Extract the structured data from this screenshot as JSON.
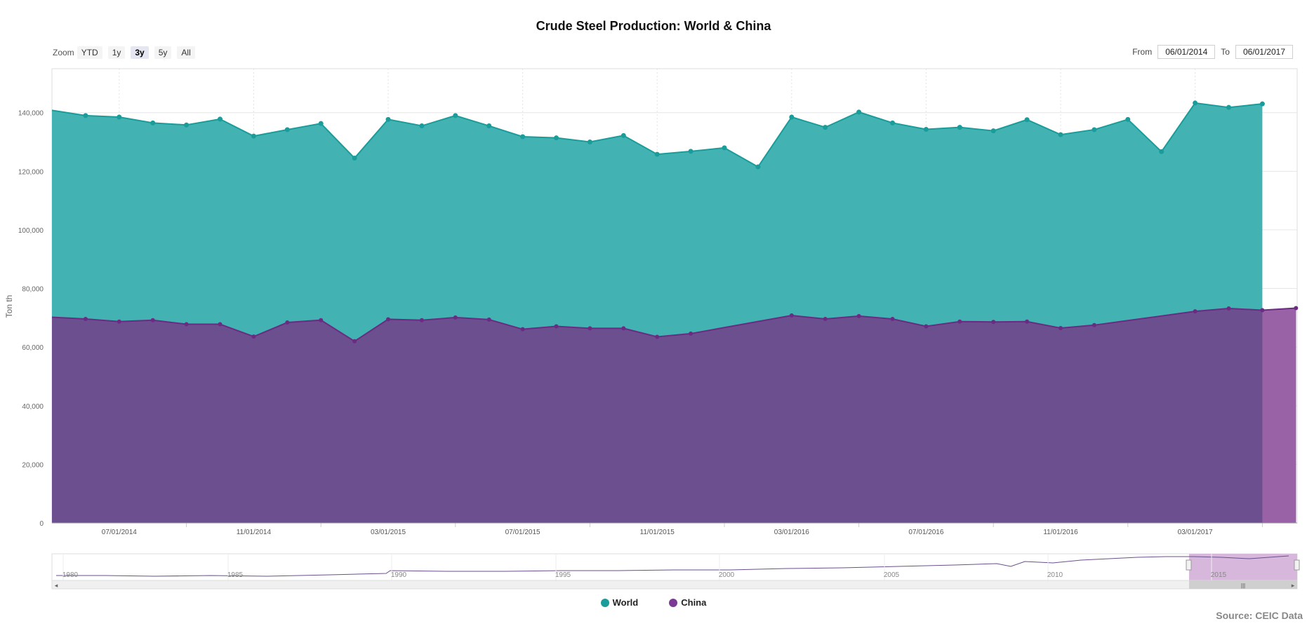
{
  "chart_data": {
    "type": "area",
    "title": "Crude Steel Production: World & China",
    "ylabel": "Ton th",
    "ylim": [
      0,
      155000
    ],
    "yticks": [
      0,
      20000,
      40000,
      60000,
      80000,
      100000,
      120000,
      140000
    ],
    "ytick_labels": [
      "0",
      "20,000",
      "40,000",
      "60,000",
      "80,000",
      "100,000",
      "120,000",
      "140,000"
    ],
    "x_ticks": [
      "07/01/2014",
      "11/01/2014",
      "03/01/2015",
      "07/01/2015",
      "11/01/2015",
      "03/01/2016",
      "07/01/2016",
      "11/01/2016",
      "03/01/2017"
    ],
    "x": [
      "2014-05",
      "2014-06",
      "2014-07",
      "2014-08",
      "2014-09",
      "2014-10",
      "2014-11",
      "2014-12",
      "2015-01",
      "2015-02",
      "2015-03",
      "2015-04",
      "2015-05",
      "2015-06",
      "2015-07",
      "2015-08",
      "2015-09",
      "2015-10",
      "2015-11",
      "2015-12",
      "2016-01",
      "2016-02",
      "2016-03",
      "2016-04",
      "2016-05",
      "2016-06",
      "2016-07",
      "2016-08",
      "2016-09",
      "2016-10",
      "2016-11",
      "2016-12",
      "2017-01",
      "2017-02",
      "2017-03",
      "2017-04",
      "2017-05",
      "2017-06"
    ],
    "series": [
      {
        "name": "World",
        "color": "#1a9c9a",
        "fill": "#43b2b2",
        "values": [
          140800,
          139000,
          138500,
          136500,
          135800,
          137800,
          132000,
          134200,
          136300,
          124500,
          137700,
          135500,
          139000,
          135500,
          131800,
          131400,
          130000,
          132200,
          125800,
          126800,
          128000,
          121500,
          138500,
          135000,
          140200,
          136500,
          134300,
          135000,
          133800,
          137600,
          132500,
          134200,
          137700,
          126700,
          143300,
          141800,
          143000,
          null
        ]
      },
      {
        "name": "China",
        "color": "#6a2c82",
        "fill": "#6b4f8e",
        "values": [
          70200,
          69600,
          68700,
          69200,
          67800,
          67800,
          63600,
          68400,
          69200,
          62000,
          69500,
          69200,
          70100,
          69400,
          66100,
          67100,
          66400,
          66400,
          63500,
          64600,
          null,
          null,
          70800,
          69600,
          70600,
          69600,
          67100,
          68700,
          68600,
          68700,
          66500,
          67500,
          null,
          null,
          72200,
          73200,
          72600,
          73300
        ]
      }
    ],
    "navigator": {
      "labels": [
        "1980",
        "1985",
        "1990",
        "1995",
        "2000",
        "2005",
        "2010",
        "2015"
      ]
    },
    "grid": true,
    "legend_position": "bottom-center"
  },
  "toolbar": {
    "zoom_label": "Zoom",
    "zoom_buttons": [
      "YTD",
      "1y",
      "3y",
      "5y",
      "All"
    ],
    "from_label": "From",
    "from_value": "06/01/2014",
    "to_label": "To",
    "to_value": "06/01/2017"
  },
  "legend": {
    "world": "World",
    "china": "China",
    "world_color": "#1a9c9a",
    "china_color": "#7a3a96"
  },
  "source": "Source: CEIC Data"
}
